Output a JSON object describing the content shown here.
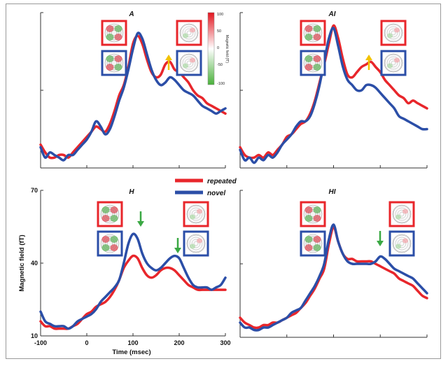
{
  "colors": {
    "repeated": "#e8262b",
    "novel": "#2b4ea7",
    "yellow_arrow": "#f2c200",
    "green_arrow": "#3aa843",
    "axis": "#333333"
  },
  "legend": {
    "repeated": "repeated",
    "novel": "novel"
  },
  "colorbar": {
    "max_label": "100",
    "mid_high_label": "50",
    "zero_label": "0",
    "mid_low_label": "-50",
    "min_label": "-100",
    "title": "Magnetic field (fT)"
  },
  "chart_data": [
    {
      "type": "line",
      "title": "A",
      "xlim": [
        -100,
        300
      ],
      "ylim": [
        10,
        70
      ],
      "ticks_labeled": false,
      "arrow": {
        "x": 182,
        "color": "yellow",
        "direction": "up"
      },
      "series": [
        {
          "name": "repeated",
          "color": "#e8262b",
          "x": [
            -100,
            -90,
            -80,
            -70,
            -60,
            -50,
            -40,
            -30,
            -20,
            -10,
            0,
            10,
            20,
            30,
            40,
            50,
            60,
            70,
            80,
            90,
            100,
            110,
            120,
            130,
            140,
            150,
            160,
            170,
            180,
            190,
            200,
            210,
            220,
            230,
            240,
            250,
            260,
            270,
            280,
            290,
            300
          ],
          "y": [
            19,
            16,
            14,
            14,
            15,
            15,
            14,
            16,
            18,
            20,
            22,
            24,
            26,
            25,
            24,
            27,
            32,
            38,
            42,
            49,
            58,
            61,
            58,
            52,
            47,
            45,
            46,
            50,
            51,
            48,
            47,
            45,
            43,
            40,
            38,
            37,
            35,
            34,
            33,
            32,
            31
          ]
        },
        {
          "name": "novel",
          "color": "#2b4ea7",
          "x": [
            -100,
            -90,
            -80,
            -70,
            -60,
            -50,
            -40,
            -30,
            -20,
            -10,
            0,
            10,
            20,
            30,
            40,
            50,
            60,
            70,
            80,
            90,
            100,
            110,
            120,
            130,
            140,
            150,
            160,
            170,
            180,
            190,
            200,
            210,
            220,
            230,
            240,
            250,
            260,
            270,
            280,
            290,
            300
          ],
          "y": [
            18,
            14,
            16,
            15,
            14,
            13,
            15,
            15,
            17,
            19,
            21,
            24,
            28,
            26,
            23,
            25,
            30,
            36,
            41,
            48,
            56,
            62,
            60,
            54,
            48,
            44,
            42,
            43,
            45,
            44,
            42,
            40,
            39,
            38,
            36,
            34,
            33,
            32,
            31,
            32,
            33
          ]
        }
      ]
    },
    {
      "type": "line",
      "title": "AI",
      "xlim": [
        -100,
        300
      ],
      "ylim": [
        10,
        70
      ],
      "ticks_labeled": false,
      "arrow": {
        "x": 182,
        "color": "yellow",
        "direction": "up"
      },
      "series": [
        {
          "name": "repeated",
          "color": "#e8262b",
          "x": [
            -100,
            -90,
            -80,
            -70,
            -60,
            -50,
            -40,
            -30,
            -20,
            -10,
            0,
            10,
            20,
            30,
            40,
            50,
            60,
            70,
            80,
            90,
            100,
            110,
            120,
            130,
            140,
            150,
            160,
            170,
            180,
            190,
            200,
            210,
            220,
            230,
            240,
            250,
            260,
            270,
            280,
            290,
            300
          ],
          "y": [
            18,
            15,
            14,
            14,
            15,
            14,
            16,
            15,
            17,
            19,
            22,
            23,
            25,
            27,
            28,
            31,
            36,
            43,
            50,
            58,
            65,
            60,
            52,
            46,
            45,
            47,
            49,
            50,
            51,
            49,
            47,
            44,
            42,
            40,
            38,
            37,
            35,
            36,
            35,
            34,
            33
          ]
        },
        {
          "name": "novel",
          "color": "#2b4ea7",
          "x": [
            -100,
            -90,
            -80,
            -70,
            -60,
            -50,
            -40,
            -30,
            -20,
            -10,
            0,
            10,
            20,
            30,
            40,
            50,
            60,
            70,
            80,
            90,
            100,
            110,
            120,
            130,
            140,
            150,
            160,
            170,
            180,
            190,
            200,
            210,
            220,
            230,
            240,
            250,
            260,
            270,
            280,
            290,
            300
          ],
          "y": [
            17,
            13,
            14,
            12,
            14,
            13,
            15,
            14,
            16,
            19,
            21,
            23,
            26,
            28,
            28,
            30,
            35,
            42,
            51,
            60,
            64,
            57,
            49,
            44,
            42,
            40,
            40,
            42,
            42,
            41,
            39,
            37,
            35,
            33,
            30,
            29,
            28,
            27,
            26,
            25,
            25
          ]
        }
      ]
    },
    {
      "type": "line",
      "title": "H",
      "xlim": [
        -100,
        300
      ],
      "ylim": [
        10,
        70
      ],
      "xlabel": "Time (msec)",
      "ylabel": "Magnetic field (fT)",
      "xticks": [
        -100,
        0,
        100,
        200,
        300
      ],
      "yticks": [
        10,
        40,
        70
      ],
      "arrows": [
        {
          "x": 112,
          "color": "green",
          "direction": "down"
        },
        {
          "x": 196,
          "color": "green",
          "direction": "down"
        }
      ],
      "series": [
        {
          "name": "repeated",
          "color": "#e8262b",
          "x": [
            -100,
            -90,
            -80,
            -70,
            -60,
            -50,
            -40,
            -30,
            -20,
            -10,
            0,
            10,
            20,
            30,
            40,
            50,
            60,
            70,
            80,
            90,
            100,
            110,
            120,
            130,
            140,
            150,
            160,
            170,
            180,
            190,
            200,
            210,
            220,
            230,
            240,
            250,
            260,
            270,
            280,
            290,
            300
          ],
          "y": [
            16,
            14,
            14,
            13,
            13,
            13,
            13,
            14,
            15,
            17,
            19,
            20,
            22,
            23,
            24,
            26,
            29,
            33,
            38,
            41,
            43,
            42,
            38,
            35,
            34,
            35,
            37,
            38,
            38,
            37,
            35,
            33,
            31,
            30,
            29,
            29,
            29,
            29,
            29,
            29,
            29
          ]
        },
        {
          "name": "novel",
          "color": "#2b4ea7",
          "x": [
            -100,
            -90,
            -80,
            -70,
            -60,
            -50,
            -40,
            -30,
            -20,
            -10,
            0,
            10,
            20,
            30,
            40,
            50,
            60,
            70,
            80,
            90,
            100,
            110,
            120,
            130,
            140,
            150,
            160,
            170,
            180,
            190,
            200,
            210,
            220,
            230,
            240,
            250,
            260,
            270,
            280,
            290,
            300
          ],
          "y": [
            20,
            16,
            15,
            14,
            14,
            14,
            13,
            14,
            16,
            17,
            18,
            19,
            21,
            24,
            26,
            28,
            30,
            33,
            40,
            48,
            52,
            50,
            44,
            40,
            38,
            37,
            38,
            40,
            42,
            43,
            42,
            38,
            34,
            31,
            30,
            30,
            30,
            29,
            30,
            31,
            34
          ]
        }
      ]
    },
    {
      "type": "line",
      "title": "HI",
      "xlim": [
        -100,
        300
      ],
      "ylim": [
        10,
        70
      ],
      "ticks_labeled": false,
      "arrow": {
        "x": 200,
        "color": "green",
        "direction": "down"
      },
      "series": [
        {
          "name": "repeated",
          "color": "#e8262b",
          "x": [
            -100,
            -90,
            -80,
            -70,
            -60,
            -50,
            -40,
            -30,
            -20,
            -10,
            0,
            10,
            20,
            30,
            40,
            50,
            60,
            70,
            80,
            90,
            100,
            110,
            120,
            130,
            140,
            150,
            160,
            170,
            180,
            190,
            200,
            210,
            220,
            230,
            240,
            250,
            260,
            270,
            280,
            290,
            300
          ],
          "y": [
            18,
            16,
            15,
            14,
            14,
            15,
            15,
            16,
            16,
            17,
            18,
            19,
            20,
            22,
            24,
            27,
            30,
            34,
            38,
            48,
            55,
            49,
            44,
            42,
            42,
            41,
            41,
            41,
            41,
            40,
            39,
            38,
            37,
            36,
            34,
            33,
            32,
            31,
            29,
            27,
            26
          ]
        },
        {
          "name": "novel",
          "color": "#2b4ea7",
          "x": [
            -100,
            -90,
            -80,
            -70,
            -60,
            -50,
            -40,
            -30,
            -20,
            -10,
            0,
            10,
            20,
            30,
            40,
            50,
            60,
            70,
            80,
            90,
            100,
            110,
            120,
            130,
            140,
            150,
            160,
            170,
            180,
            190,
            200,
            210,
            220,
            230,
            240,
            250,
            260,
            270,
            280,
            290,
            300
          ],
          "y": [
            16,
            14,
            14,
            13,
            13,
            14,
            14,
            15,
            16,
            17,
            18,
            20,
            21,
            22,
            25,
            28,
            31,
            35,
            40,
            50,
            56,
            49,
            44,
            41,
            40,
            40,
            40,
            40,
            40,
            41,
            43,
            42,
            40,
            38,
            37,
            36,
            35,
            34,
            32,
            30,
            28
          ]
        }
      ]
    }
  ]
}
